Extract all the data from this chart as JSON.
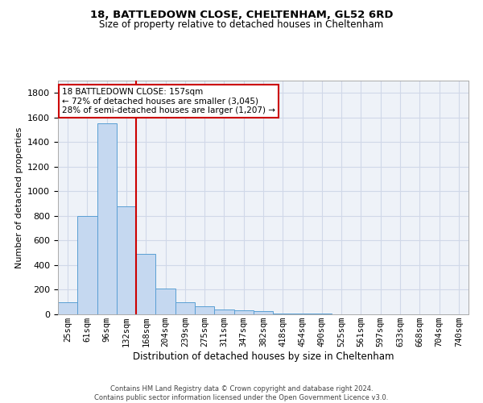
{
  "title1": "18, BATTLEDOWN CLOSE, CHELTENHAM, GL52 6RD",
  "title2": "Size of property relative to detached houses in Cheltenham",
  "xlabel": "Distribution of detached houses by size in Cheltenham",
  "ylabel": "Number of detached properties",
  "categories": [
    "25sqm",
    "61sqm",
    "96sqm",
    "132sqm",
    "168sqm",
    "204sqm",
    "239sqm",
    "275sqm",
    "311sqm",
    "347sqm",
    "382sqm",
    "418sqm",
    "454sqm",
    "490sqm",
    "525sqm",
    "561sqm",
    "597sqm",
    "633sqm",
    "668sqm",
    "704sqm",
    "740sqm"
  ],
  "values": [
    100,
    800,
    1550,
    880,
    490,
    210,
    100,
    65,
    40,
    30,
    25,
    5,
    5,
    5,
    3,
    3,
    2,
    2,
    2,
    2,
    2
  ],
  "bar_color": "#c5d8f0",
  "bar_edge_color": "#5a9fd4",
  "vline_color": "#cc0000",
  "annotation_text_line1": "18 BATTLEDOWN CLOSE: 157sqm",
  "annotation_text_line2": "← 72% of detached houses are smaller (3,045)",
  "annotation_text_line3": "28% of semi-detached houses are larger (1,207) →",
  "ylim": [
    0,
    1900
  ],
  "yticks": [
    0,
    200,
    400,
    600,
    800,
    1000,
    1200,
    1400,
    1600,
    1800
  ],
  "grid_color": "#d0d8e8",
  "background_color": "#eef2f8",
  "footer_line1": "Contains HM Land Registry data © Crown copyright and database right 2024.",
  "footer_line2": "Contains public sector information licensed under the Open Government Licence v3.0."
}
